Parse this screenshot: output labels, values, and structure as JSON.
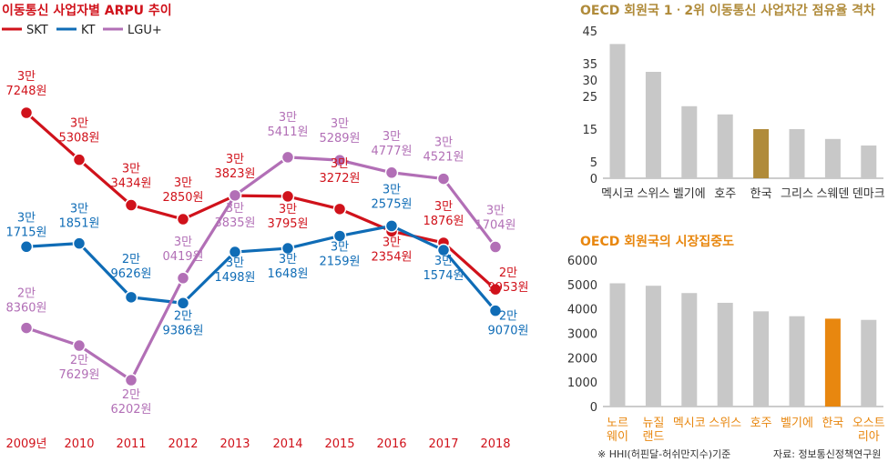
{
  "footnote": "※ HHI(허핀달-허쉬만지수)기준",
  "source": "자료: 정보통신정책연구원",
  "chart_data": [
    {
      "type": "line",
      "title": "이동통신 사업자별 ARPU 추이",
      "x": [
        "2009년",
        "2010",
        "2011",
        "2012",
        "2013",
        "2014",
        "2015",
        "2016",
        "2017",
        "2018"
      ],
      "series": [
        {
          "name": "SKT",
          "color": "#d0121b",
          "values": [
            37248,
            35308,
            33434,
            32850,
            33823,
            33795,
            33272,
            32354,
            31876,
            29953
          ],
          "labels": [
            [
              "3만",
              "7248원"
            ],
            [
              "3만",
              "5308원"
            ],
            [
              "3만",
              "3434원"
            ],
            [
              "3만",
              "2850원"
            ],
            [
              "3만",
              "3823원"
            ],
            [
              "3만",
              "3795원"
            ],
            [
              "3만",
              "3272원"
            ],
            [
              "3만",
              "2354원"
            ],
            [
              "3만",
              "1876원"
            ],
            [
              "2만",
              "9953원"
            ]
          ]
        },
        {
          "name": "KT",
          "color": "#0f6cb6",
          "values": [
            31715,
            31851,
            29626,
            29386,
            31498,
            31648,
            32159,
            32575,
            31574,
            29070
          ],
          "labels": [
            [
              "3만",
              "1715원"
            ],
            [
              "3만",
              "1851원"
            ],
            [
              "2만",
              "9626원"
            ],
            [
              "2만",
              "9386원"
            ],
            [
              "3만",
              "1498원"
            ],
            [
              "3만",
              "1648원"
            ],
            [
              "3만",
              "2159원"
            ],
            [
              "3만",
              "2575원"
            ],
            [
              "3만",
              "1574원"
            ],
            [
              "2만",
              "9070원"
            ]
          ]
        },
        {
          "name": "LGU+",
          "color": "#b26fb6",
          "values": [
            28360,
            27629,
            26202,
            30419,
            33835,
            35411,
            35289,
            34777,
            34521,
            31704
          ],
          "labels": [
            [
              "2만",
              "8360원"
            ],
            [
              "2만",
              "7629원"
            ],
            [
              "2만",
              "6202원"
            ],
            [
              "3만",
              "0419원"
            ],
            [
              "3만",
              "3835원"
            ],
            [
              "3만",
              "5411원"
            ],
            [
              "3만",
              "5289원"
            ],
            [
              "3만",
              "4777원"
            ],
            [
              "3만",
              "4521원"
            ],
            [
              "3만",
              "1704원"
            ]
          ]
        }
      ]
    },
    {
      "type": "bar",
      "title": "OECD 회원국 1ㆍ2위 이동통신 사업자간 점유율 격차",
      "categories": [
        "멕시코",
        "스위스",
        "벨기에",
        "호주",
        "한국",
        "그리스",
        "스웨덴",
        "덴마크"
      ],
      "values": [
        41,
        32.5,
        22,
        19.5,
        15,
        15,
        12,
        10
      ],
      "highlight": "한국",
      "ylim": [
        0,
        45
      ],
      "yticks": [
        "45",
        "35",
        "30",
        "25",
        "15",
        "5",
        "0"
      ],
      "colors": {
        "bar": "#c8c8c8",
        "highlight": "#b08b3a",
        "title": "#b08b3a"
      }
    },
    {
      "type": "bar",
      "title": "OECD 회원국의 시장집중도",
      "categories": [
        "노르 웨이",
        "뉴질 랜드",
        "멕시코",
        "스위스",
        "호주",
        "벨기에",
        "한국",
        "오스트 리아"
      ],
      "values": [
        5050,
        4950,
        4650,
        4250,
        3900,
        3700,
        3600,
        3550
      ],
      "highlight": "한국",
      "ylim": [
        0,
        6000
      ],
      "yticks": [
        "6000",
        "5000",
        "4000",
        "3000",
        "2000",
        "1000",
        "0"
      ],
      "colors": {
        "bar": "#c8c8c8",
        "highlight": "#e8870f",
        "title": "#e8870f",
        "category": "#e8870f"
      }
    }
  ]
}
